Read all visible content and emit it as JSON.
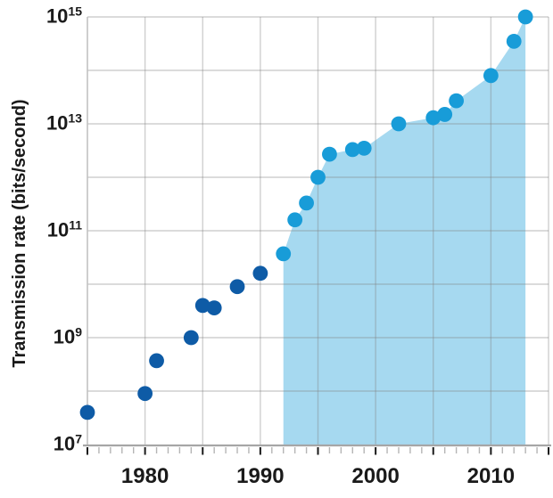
{
  "chart_data": {
    "type": "scatter-area",
    "title": "",
    "xlabel": "",
    "ylabel": "Transmission rate (bits/second)",
    "y_scale": "log10",
    "grid": true,
    "legend": "none",
    "xlim": [
      1975,
      2015
    ],
    "ylim_exponents": [
      7,
      15
    ],
    "x_tick_labels": [
      1980,
      1990,
      2000,
      2010
    ],
    "x_minor_tick_step": 1,
    "x_major_tick_step": 5,
    "y_tick_label_exponents": [
      7,
      9,
      11,
      13,
      15
    ],
    "area_from_year": 1992,
    "points": [
      {
        "year": 1975,
        "rate": 40000000.0
      },
      {
        "year": 1980,
        "rate": 90000000.0
      },
      {
        "year": 1981,
        "rate": 370000000.0
      },
      {
        "year": 1984,
        "rate": 1000000000.0
      },
      {
        "year": 1985,
        "rate": 4000000000.0
      },
      {
        "year": 1986,
        "rate": 3600000000.0
      },
      {
        "year": 1988,
        "rate": 9000000000.0
      },
      {
        "year": 1990,
        "rate": 16000000000.0
      },
      {
        "year": 1992,
        "rate": 37000000000.0
      },
      {
        "year": 1993,
        "rate": 160000000000.0
      },
      {
        "year": 1994,
        "rate": 330000000000.0
      },
      {
        "year": 1995,
        "rate": 1000000000000.0
      },
      {
        "year": 1996,
        "rate": 2700000000000.0
      },
      {
        "year": 1998,
        "rate": 3300000000000.0
      },
      {
        "year": 1999,
        "rate": 3500000000000.0
      },
      {
        "year": 2002,
        "rate": 10000000000000.0
      },
      {
        "year": 2005,
        "rate": 13000000000000.0
      },
      {
        "year": 2006,
        "rate": 15000000000000.0
      },
      {
        "year": 2007,
        "rate": 27000000000000.0
      },
      {
        "year": 2010,
        "rate": 80000000000000.0
      },
      {
        "year": 2012,
        "rate": 350000000000000.0
      },
      {
        "year": 2013,
        "rate": 1000000000000000.0
      }
    ],
    "colors": {
      "dot_early": "#0e5ba6",
      "dot_recent": "#189cd8",
      "area_fill": "#a6d9f0",
      "gridline": "rgba(128,128,128,0.38)",
      "left_axis": "#c2c2c2",
      "bottom_axis": "#a6a6a6",
      "minor_tick": "#b5b5b5",
      "major_tick": "#1a1a1a",
      "text": "#1a1a1a"
    }
  }
}
